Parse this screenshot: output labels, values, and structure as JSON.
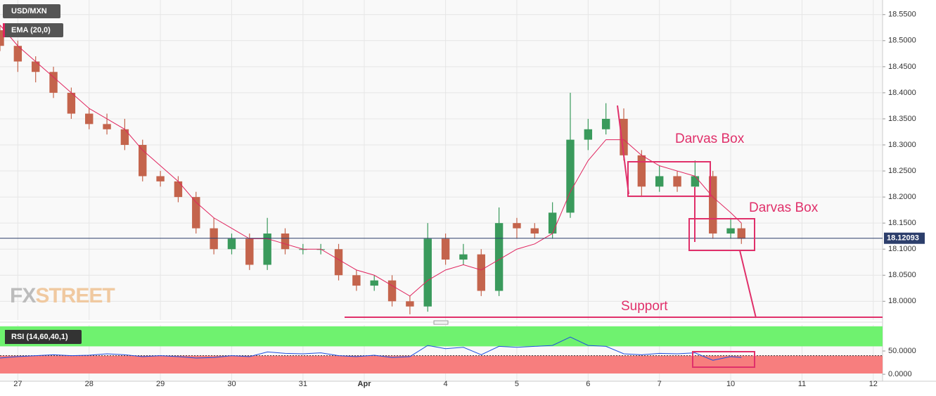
{
  "chart_data": {
    "type": "candlestick",
    "symbol": "USD/MXN",
    "indicator": "EMA (20,0)",
    "watermark": [
      "FX",
      "STREET"
    ],
    "annotations": [
      "Darvas Box",
      "Darvas Box",
      "Support"
    ],
    "up_color": "#3a9a5c",
    "down_color": "#c4644c",
    "ema_color": "#e0245e",
    "grid": true,
    "xlim": [
      -0.25,
      12.13
    ],
    "xticks": [
      {
        "value": 0,
        "label": "27"
      },
      {
        "value": 1,
        "label": "28"
      },
      {
        "value": 2,
        "label": "29"
      },
      {
        "value": 3,
        "label": "30"
      },
      {
        "value": 4,
        "label": "31"
      },
      {
        "value": 4.86,
        "label": "Apr"
      },
      {
        "value": 6,
        "label": "4"
      },
      {
        "value": 7,
        "label": "5"
      },
      {
        "value": 8,
        "label": "6"
      },
      {
        "value": 9,
        "label": "7"
      },
      {
        "value": 10,
        "label": "10"
      },
      {
        "value": 11,
        "label": "11"
      },
      {
        "value": 12,
        "label": "12"
      }
    ],
    "ylim": [
      17.964,
      18.578
    ],
    "yticks": [
      {
        "value": 18.0,
        "label": "18.0000"
      },
      {
        "value": 18.05,
        "label": "18.0500"
      },
      {
        "value": 18.1,
        "label": "18.1000"
      },
      {
        "value": 18.15,
        "label": "18.1500"
      },
      {
        "value": 18.2,
        "label": "18.2000"
      },
      {
        "value": 18.25,
        "label": "18.2500"
      },
      {
        "value": 18.3,
        "label": "18.3000"
      },
      {
        "value": 18.35,
        "label": "18.3500"
      },
      {
        "value": 18.4,
        "label": "18.4000"
      },
      {
        "value": 18.45,
        "label": "18.4500"
      },
      {
        "value": 18.5,
        "label": "18.5000"
      },
      {
        "value": 18.55,
        "label": "18.5500"
      }
    ],
    "last_price": 18.12093,
    "x": [
      -0.25,
      0,
      0.25,
      0.5,
      0.75,
      1,
      1.25,
      1.5,
      1.75,
      2,
      2.25,
      2.5,
      2.75,
      3,
      3.25,
      3.5,
      3.75,
      4,
      4.25,
      4.5,
      4.75,
      5,
      5.25,
      5.5,
      5.75,
      6,
      6.25,
      6.5,
      6.75,
      7,
      7.25,
      7.5,
      7.75,
      8,
      8.25,
      8.5,
      8.75,
      9,
      9.25,
      9.5,
      9.75,
      10,
      10.15
    ],
    "open": [
      18.52,
      18.49,
      18.46,
      18.44,
      18.4,
      18.36,
      18.34,
      18.33,
      18.3,
      18.24,
      18.23,
      18.2,
      18.14,
      18.1,
      18.12,
      18.07,
      18.13,
      18.1,
      18.1,
      18.1,
      18.05,
      18.03,
      18.04,
      18.0,
      17.99,
      18.12,
      18.08,
      18.09,
      18.02,
      18.15,
      18.14,
      18.13,
      18.17,
      18.31,
      18.33,
      18.35,
      18.28,
      18.22,
      18.24,
      18.22,
      18.24,
      18.13,
      18.14
    ],
    "high": [
      18.53,
      18.5,
      18.47,
      18.45,
      18.41,
      18.37,
      18.36,
      18.35,
      18.31,
      18.25,
      18.24,
      18.21,
      18.16,
      18.13,
      18.13,
      18.16,
      18.14,
      18.11,
      18.11,
      18.11,
      18.06,
      18.05,
      18.05,
      18.01,
      18.15,
      18.13,
      18.11,
      18.1,
      18.18,
      18.16,
      18.15,
      18.19,
      18.4,
      18.35,
      18.38,
      18.37,
      18.29,
      18.26,
      18.25,
      18.27,
      18.25,
      18.16,
      18.15
    ],
    "low": [
      18.48,
      18.44,
      18.42,
      18.39,
      18.35,
      18.33,
      18.32,
      18.29,
      18.23,
      18.22,
      18.19,
      18.13,
      18.09,
      18.09,
      18.06,
      18.06,
      18.09,
      18.09,
      18.09,
      18.04,
      18.02,
      18.02,
      17.99,
      17.975,
      17.98,
      18.07,
      18.07,
      18.01,
      18.01,
      18.12,
      18.12,
      18.12,
      18.16,
      18.29,
      18.32,
      18.27,
      18.2,
      18.21,
      18.21,
      18.21,
      18.12,
      18.12,
      18.11
    ],
    "close": [
      18.49,
      18.46,
      18.44,
      18.4,
      18.36,
      18.34,
      18.33,
      18.3,
      18.24,
      18.23,
      18.2,
      18.14,
      18.1,
      18.12,
      18.07,
      18.13,
      18.1,
      18.1,
      18.1,
      18.05,
      18.03,
      18.04,
      18.0,
      17.99,
      18.12,
      18.08,
      18.09,
      18.02,
      18.15,
      18.14,
      18.13,
      18.17,
      18.31,
      18.33,
      18.35,
      18.28,
      18.22,
      18.24,
      18.22,
      18.24,
      18.13,
      18.14,
      18.12
    ],
    "ema": [
      18.53,
      18.49,
      18.46,
      18.43,
      18.4,
      18.37,
      18.35,
      18.33,
      18.29,
      18.26,
      18.23,
      18.19,
      18.16,
      18.14,
      18.12,
      18.12,
      18.11,
      18.1,
      18.1,
      18.08,
      18.06,
      18.05,
      18.03,
      18.01,
      18.04,
      18.06,
      18.07,
      18.06,
      18.08,
      18.1,
      18.11,
      18.13,
      18.21,
      18.27,
      18.31,
      18.31,
      18.28,
      18.26,
      18.25,
      18.24,
      18.2,
      18.17,
      18.15
    ],
    "rsi": {
      "label": "RSI (14,60,40,1)",
      "color": "#2050e0",
      "upper": 60,
      "lower": 40,
      "upper_color": "#6ff26f",
      "lower_color": "#f77e7e",
      "ylim": [
        -15,
        106
      ],
      "yticks": [
        {
          "value": 0,
          "label": "0.0000"
        },
        {
          "value": 50,
          "label": "50.0000"
        }
      ],
      "values": [
        35,
        38,
        40,
        42,
        40,
        41,
        44,
        42,
        38,
        40,
        38,
        35,
        36,
        40,
        38,
        48,
        45,
        44,
        46,
        40,
        38,
        41,
        36,
        38,
        62,
        55,
        58,
        42,
        60,
        58,
        60,
        62,
        80,
        62,
        60,
        44,
        42,
        45,
        44,
        46,
        30,
        38,
        36
      ]
    }
  }
}
